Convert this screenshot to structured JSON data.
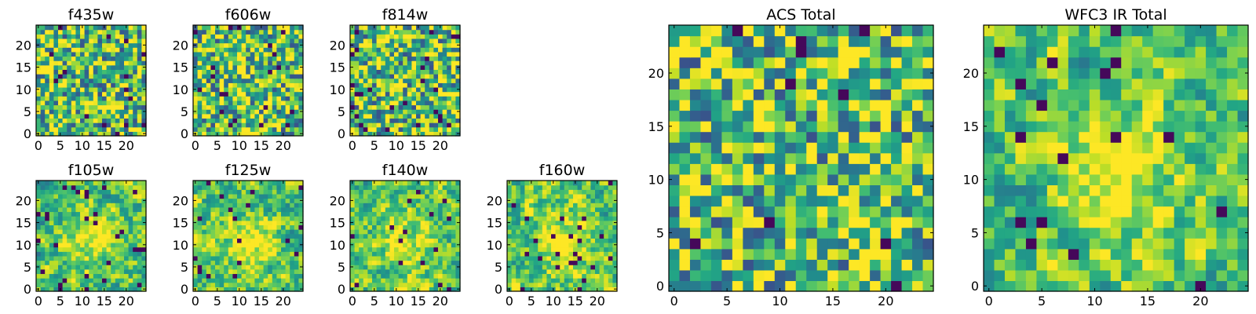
{
  "chart_data": [
    {
      "type": "heatmap",
      "title": "f435w",
      "x_ticks": [
        "0",
        "5",
        "10",
        "15",
        "20"
      ],
      "y_ticks": [
        "0",
        "5",
        "10",
        "15",
        "20"
      ],
      "xlim": [
        -0.5,
        24.5
      ],
      "ylim": [
        -0.5,
        24.5
      ],
      "grid": false,
      "colormap": "viridis"
    },
    {
      "type": "heatmap",
      "title": "f606w",
      "x_ticks": [
        "0",
        "5",
        "10",
        "15",
        "20"
      ],
      "y_ticks": [
        "0",
        "5",
        "10",
        "15",
        "20"
      ],
      "xlim": [
        -0.5,
        24.5
      ],
      "ylim": [
        -0.5,
        24.5
      ],
      "grid": false,
      "colormap": "viridis"
    },
    {
      "type": "heatmap",
      "title": "f814w",
      "x_ticks": [
        "0",
        "5",
        "10",
        "15",
        "20"
      ],
      "y_ticks": [
        "0",
        "5",
        "10",
        "15",
        "20"
      ],
      "xlim": [
        -0.5,
        24.5
      ],
      "ylim": [
        -0.5,
        24.5
      ],
      "grid": false,
      "colormap": "viridis"
    },
    {
      "type": "heatmap",
      "title": "f105w",
      "x_ticks": [
        "0",
        "5",
        "10",
        "15",
        "20"
      ],
      "y_ticks": [
        "0",
        "5",
        "10",
        "15",
        "20"
      ],
      "xlim": [
        -0.5,
        24.5
      ],
      "ylim": [
        -0.5,
        24.5
      ],
      "grid": false,
      "colormap": "viridis"
    },
    {
      "type": "heatmap",
      "title": "f125w",
      "x_ticks": [
        "0",
        "5",
        "10",
        "15",
        "20"
      ],
      "y_ticks": [
        "0",
        "5",
        "10",
        "15",
        "20"
      ],
      "xlim": [
        -0.5,
        24.5
      ],
      "ylim": [
        -0.5,
        24.5
      ],
      "grid": false,
      "colormap": "viridis"
    },
    {
      "type": "heatmap",
      "title": "f140w",
      "x_ticks": [
        "0",
        "5",
        "10",
        "15",
        "20"
      ],
      "y_ticks": [
        "0",
        "5",
        "10",
        "15",
        "20"
      ],
      "xlim": [
        -0.5,
        24.5
      ],
      "ylim": [
        -0.5,
        24.5
      ],
      "grid": false,
      "colormap": "viridis"
    },
    {
      "type": "heatmap",
      "title": "f160w",
      "x_ticks": [
        "0",
        "5",
        "10",
        "15",
        "20"
      ],
      "y_ticks": [
        "0",
        "5",
        "10",
        "15",
        "20"
      ],
      "xlim": [
        -0.5,
        24.5
      ],
      "ylim": [
        -0.5,
        24.5
      ],
      "grid": false,
      "colormap": "viridis"
    },
    {
      "type": "heatmap",
      "title": "ACS Total",
      "x_ticks": [
        "0",
        "5",
        "10",
        "15",
        "20"
      ],
      "y_ticks": [
        "0",
        "5",
        "10",
        "15",
        "20"
      ],
      "xlim": [
        -0.5,
        24.5
      ],
      "ylim": [
        -0.5,
        24.5
      ],
      "grid": false,
      "colormap": "viridis"
    },
    {
      "type": "heatmap",
      "title": "WFC3 IR Total",
      "x_ticks": [
        "0",
        "5",
        "10",
        "15",
        "20"
      ],
      "y_ticks": [
        "0",
        "5",
        "10",
        "15",
        "20"
      ],
      "xlim": [
        -0.5,
        24.5
      ],
      "ylim": [
        -0.5,
        24.5
      ],
      "grid": false,
      "colormap": "viridis"
    }
  ]
}
